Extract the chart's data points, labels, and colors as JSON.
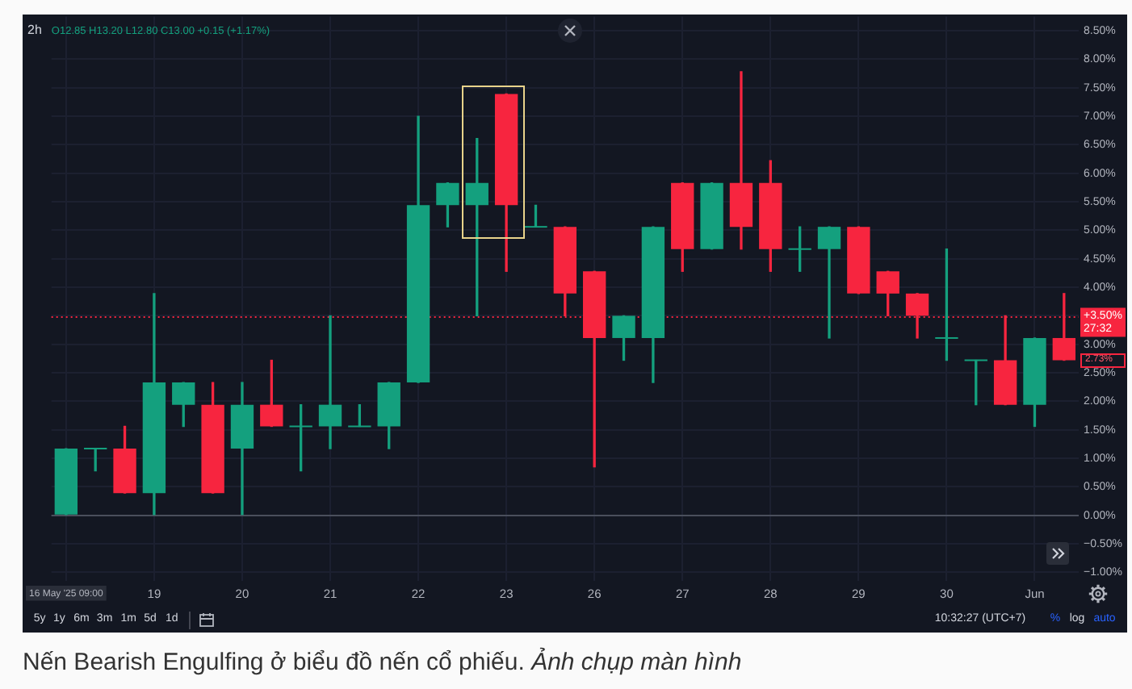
{
  "chart_data": {
    "type": "candlestick",
    "title": "2h",
    "subtitle": "O12.85 H13.20 L12.80 C13.00 +0.15 (+1.17%)",
    "categories": [
      "16 May '25 09:00",
      null,
      null,
      "19",
      null,
      null,
      "20",
      null,
      null,
      "21",
      null,
      null,
      "22",
      null,
      null,
      "23",
      null,
      null,
      "26",
      null,
      null,
      "27",
      null,
      null,
      "28",
      null,
      null,
      "29",
      null,
      null,
      "30",
      null,
      null,
      "Jun",
      null
    ],
    "ohlc": [
      [
        0,
        1.17,
        0,
        1.17
      ],
      [
        1.17,
        1.17,
        0.78,
        1.17
      ],
      [
        1.17,
        1.56,
        0.39,
        0.39
      ],
      [
        0.39,
        3.89,
        0,
        2.33
      ],
      [
        1.94,
        2.33,
        1.56,
        2.33
      ],
      [
        1.94,
        2.33,
        0.39,
        0.39
      ],
      [
        1.17,
        2.33,
        0,
        1.94
      ],
      [
        1.94,
        2.72,
        1.56,
        1.56
      ],
      [
        1.56,
        1.94,
        0.78,
        1.56
      ],
      [
        1.56,
        3.5,
        1.17,
        1.94
      ],
      [
        1.56,
        1.94,
        1.56,
        1.56
      ],
      [
        1.56,
        2.33,
        1.17,
        2.33
      ],
      [
        2.33,
        7,
        2.33,
        5.44
      ],
      [
        5.44,
        5.83,
        5.06,
        5.83
      ],
      [
        5.44,
        6.61,
        3.5,
        5.83
      ],
      [
        7.39,
        7.39,
        4.28,
        5.44
      ],
      [
        5.06,
        5.44,
        5.06,
        5.06
      ],
      [
        5.06,
        5.06,
        3.5,
        3.89
      ],
      [
        4.28,
        4.28,
        0.85,
        3.11
      ],
      [
        3.11,
        3.5,
        2.72,
        3.5
      ],
      [
        3.11,
        5.06,
        2.33,
        5.06
      ],
      [
        5.83,
        5.83,
        4.28,
        4.67
      ],
      [
        4.67,
        5.83,
        4.67,
        5.83
      ],
      [
        5.83,
        7.78,
        4.67,
        5.06
      ],
      [
        5.83,
        6.22,
        4.28,
        4.67
      ],
      [
        4.67,
        5.06,
        4.28,
        4.67
      ],
      [
        4.67,
        5.06,
        3.11,
        5.06
      ],
      [
        5.06,
        5.06,
        3.89,
        3.89
      ],
      [
        4.28,
        4.28,
        3.5,
        3.89
      ],
      [
        3.89,
        3.89,
        3.11,
        3.5
      ],
      [
        3.11,
        4.67,
        2.72,
        3.11
      ],
      [
        2.72,
        2.72,
        1.94,
        2.72
      ],
      [
        2.72,
        3.5,
        1.94,
        1.94
      ],
      [
        1.94,
        3.11,
        1.56,
        3.11
      ],
      [
        3.11,
        3.89,
        2.72,
        2.72
      ]
    ],
    "colors": [
      "#14a07e",
      "#14a07e",
      "#f7253f",
      "#14a07e",
      "#14a07e",
      "#f7253f",
      "#14a07e",
      "#f7253f",
      "#14a07e",
      "#14a07e",
      "#14a07e",
      "#14a07e",
      "#14a07e",
      "#14a07e",
      "#14a07e",
      "#f7253f",
      "#14a07e",
      "#f7253f",
      "#f7253f",
      "#14a07e",
      "#14a07e",
      "#f7253f",
      "#14a07e",
      "#f7253f",
      "#f7253f",
      "#14a07e",
      "#14a07e",
      "#f7253f",
      "#f7253f",
      "#f7253f",
      "#14a07e",
      "#14a07e",
      "#f7253f",
      "#14a07e",
      "#f7253f"
    ],
    "ylim": [
      -1.15,
      8.75
    ],
    "yticks": [
      {
        "value": -1,
        "label": "−1.00%"
      },
      {
        "value": -0.5,
        "label": "−0.50%"
      },
      {
        "value": 0,
        "label": "0.00%"
      },
      {
        "value": 0.5,
        "label": "0.50%"
      },
      {
        "value": 1,
        "label": "1.00%"
      },
      {
        "value": 1.5,
        "label": "1.50%"
      },
      {
        "value": 2,
        "label": "2.00%"
      },
      {
        "value": 2.5,
        "label": "2.50%"
      },
      {
        "value": 3,
        "label": "3.00%"
      },
      {
        "value": 3.5,
        "label": null
      },
      {
        "value": 4,
        "label": "4.00%"
      },
      {
        "value": 4.5,
        "label": "4.50%"
      },
      {
        "value": 5,
        "label": "5.00%"
      },
      {
        "value": 5.5,
        "label": "5.50%"
      },
      {
        "value": 6,
        "label": "6.00%"
      },
      {
        "value": 6.5,
        "label": "6.50%"
      },
      {
        "value": 7,
        "label": "7.00%"
      },
      {
        "value": 7.5,
        "label": "7.50%"
      },
      {
        "value": 8,
        "label": "8.00%"
      },
      {
        "value": 8.5,
        "label": "8.50%"
      }
    ],
    "grid": true,
    "ref_lines": [
      {
        "axis": "y",
        "value": 0,
        "color": "#4a4f5c",
        "line_style": "solid"
      },
      {
        "axis": "y",
        "value": 3.5,
        "label": "+3.50%\n27:32",
        "color": "#f7253f",
        "line_style": "dotted"
      }
    ],
    "annotations": [
      "5y",
      "1y",
      "6m",
      "3m",
      "1m",
      "5d",
      "1d",
      "10:32:27 (UTC+7)",
      "%",
      "log",
      "auto",
      "Nến Bearish Engulfing ở biểu đồ nến cổ phiếu.",
      "Ảnh chụp màn hình",
      "2.73%"
    ]
  }
}
